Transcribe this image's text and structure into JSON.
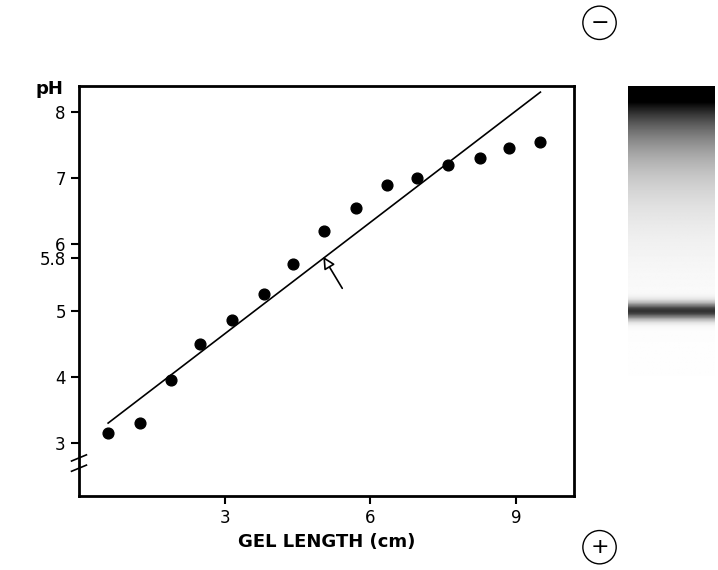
{
  "chart_data": {
    "type": "scatter",
    "x": [
      0.6,
      1.25,
      1.9,
      2.5,
      3.15,
      3.8,
      4.4,
      5.05,
      5.7,
      6.35,
      6.95,
      7.6,
      8.25,
      8.85,
      9.5
    ],
    "values": [
      3.15,
      3.3,
      3.95,
      4.5,
      4.85,
      5.25,
      5.7,
      6.2,
      6.55,
      6.9,
      7.0,
      7.2,
      7.3,
      7.45,
      7.55
    ],
    "color": "#000000",
    "marker": "o",
    "line": {
      "x": [
        0.6,
        9.5
      ],
      "values": [
        3.3,
        8.3
      ]
    },
    "arrow_point": {
      "x": 5.0,
      "y": 5.85
    },
    "x_label": "GEL LENGTH (cm)",
    "y_label": "pH",
    "xlim": [
      0,
      10.2
    ],
    "ylim": [
      2.2,
      8.4
    ],
    "xticks": [
      3,
      6,
      9
    ],
    "yticks": [
      3,
      4,
      5,
      5.8,
      6,
      7,
      8
    ],
    "grid": false,
    "electrodes": {
      "top": "−",
      "bottom": "+"
    }
  }
}
